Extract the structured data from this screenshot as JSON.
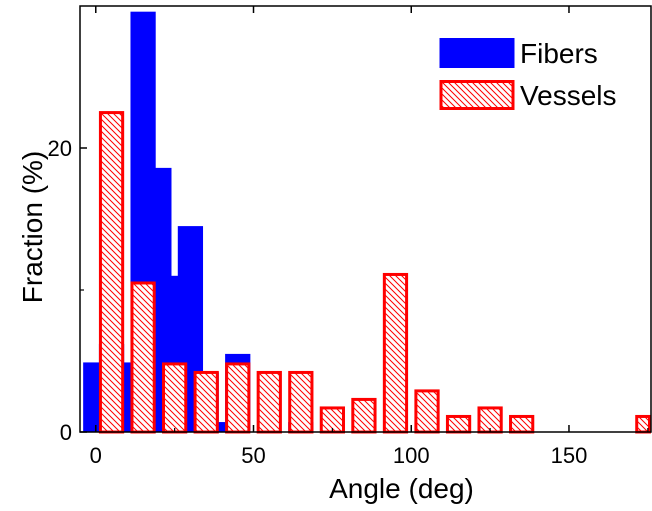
{
  "chart_data": {
    "type": "bar",
    "title": "",
    "xlabel": "Angle (deg)",
    "ylabel": "Fraction (%)",
    "xlim": [
      -5,
      176
    ],
    "ylim": [
      0,
      30
    ],
    "x_ticks": [
      0,
      50,
      100,
      150
    ],
    "y_ticks": [
      0,
      20
    ],
    "legend": {
      "position": "top-right"
    },
    "bar_width": 8,
    "series": [
      {
        "name": "Fibers",
        "style": "solid",
        "color": "#0000ff",
        "x": [
          0,
          5,
          10,
          15,
          20,
          25,
          30,
          35,
          40,
          45,
          65
        ],
        "values": [
          4.9,
          6.2,
          4.9,
          29.6,
          18.6,
          11.0,
          14.5,
          4.2,
          0.7,
          5.5,
          0.7
        ]
      },
      {
        "name": "Vessels",
        "style": "hatched",
        "color": "#ff0000",
        "x": [
          5,
          15,
          25,
          35,
          45,
          55,
          65,
          75,
          85,
          95,
          105,
          115,
          125,
          135,
          175
        ],
        "values": [
          22.6,
          10.6,
          4.9,
          4.3,
          4.9,
          4.3,
          4.3,
          1.8,
          2.4,
          11.2,
          3.0,
          1.2,
          1.8,
          1.2,
          1.2
        ]
      }
    ]
  }
}
